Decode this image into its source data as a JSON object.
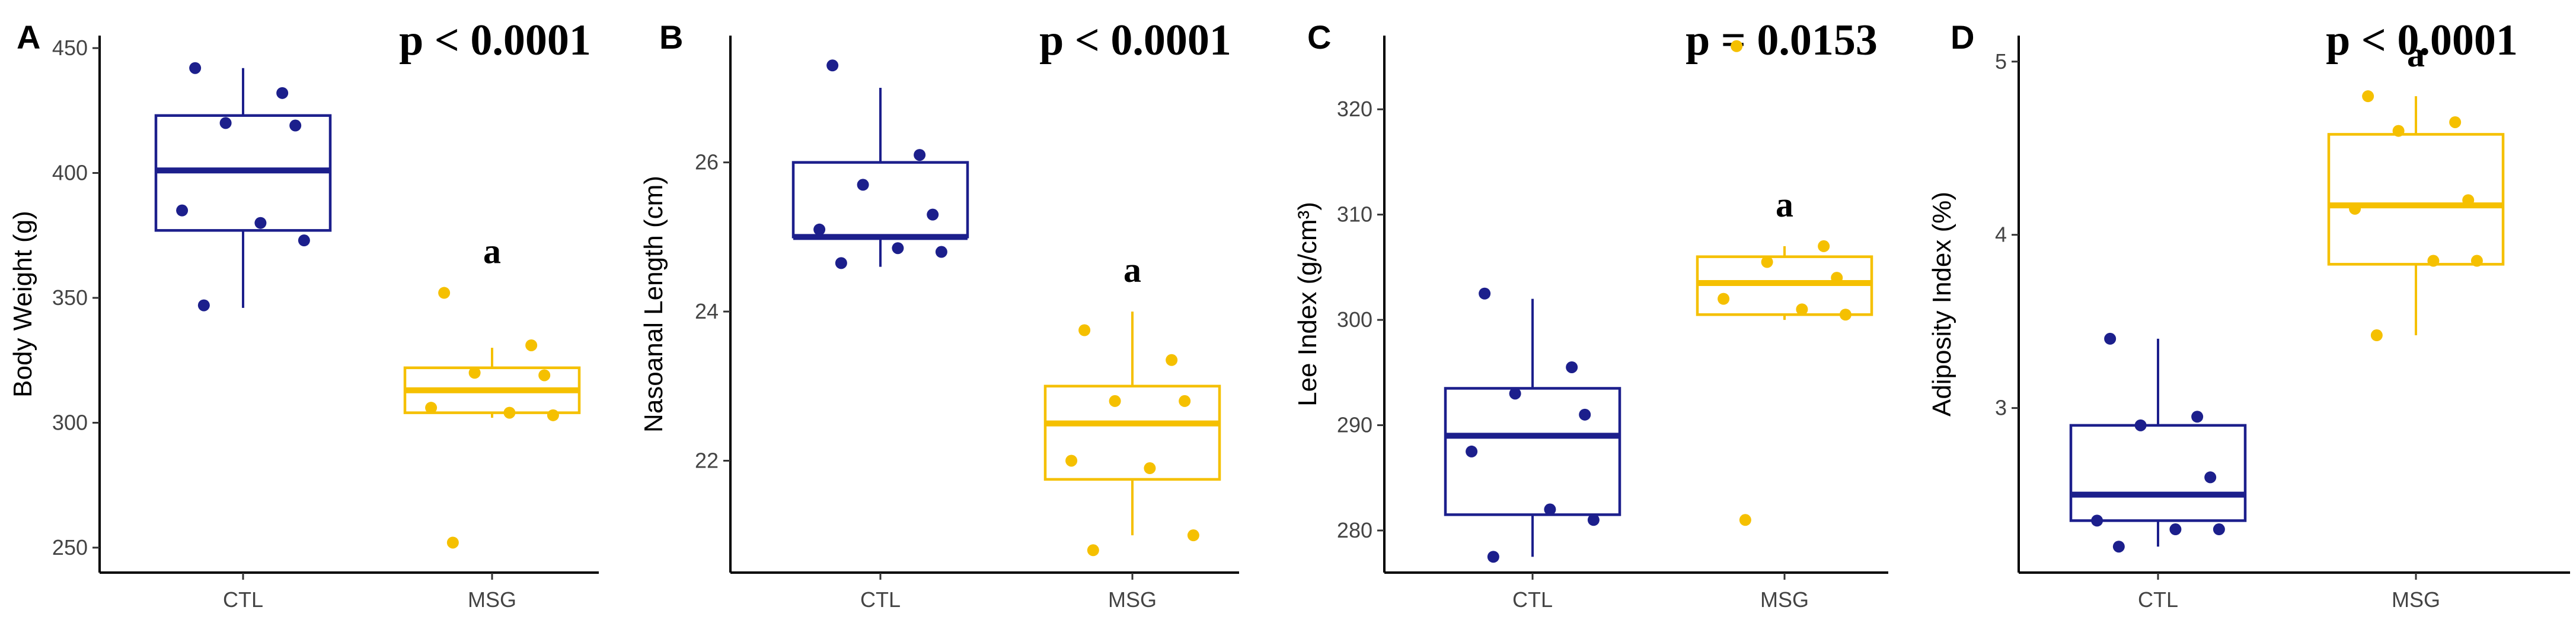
{
  "chart_data": [
    {
      "panel": "A",
      "type": "box",
      "ylabel": "Body Weight (g)",
      "ylim": [
        240,
        455
      ],
      "yticks": [
        250,
        300,
        350,
        400,
        450
      ],
      "pvalue": "p < 0.0001",
      "categories": [
        "CTL",
        "MSG"
      ],
      "colors": [
        "#1c1f8c",
        "#f5c000"
      ],
      "groups": [
        {
          "name": "CTL",
          "q1": 377,
          "median": 401,
          "q3": 423,
          "whisker_low": 346,
          "whisker_high": 442,
          "points": [
            442,
            432,
            420,
            419,
            385,
            380,
            373,
            347
          ],
          "annotation": ""
        },
        {
          "name": "MSG",
          "q1": 304,
          "median": 313,
          "q3": 322,
          "whisker_low": 302,
          "whisker_high": 330,
          "points": [
            352,
            331,
            320,
            319,
            306,
            304,
            303,
            252
          ],
          "annotation": "a"
        }
      ]
    },
    {
      "panel": "B",
      "type": "box",
      "ylabel": "Nasoanal Length (cm)",
      "ylim": [
        20.5,
        27.7
      ],
      "yticks": [
        22,
        24,
        26
      ],
      "pvalue": "p < 0.0001",
      "categories": [
        "CTL",
        "MSG"
      ],
      "colors": [
        "#1c1f8c",
        "#f5c000"
      ],
      "groups": [
        {
          "name": "CTL",
          "q1": 25.0,
          "median": 25.0,
          "q3": 26.0,
          "whisker_low": 24.6,
          "whisker_high": 27.0,
          "points": [
            27.3,
            26.1,
            25.7,
            25.3,
            25.1,
            24.85,
            24.8,
            24.65
          ],
          "annotation": ""
        },
        {
          "name": "MSG",
          "q1": 21.75,
          "median": 22.5,
          "q3": 23.0,
          "whisker_low": 21.0,
          "whisker_high": 24.0,
          "points": [
            23.75,
            23.35,
            22.8,
            22.8,
            22.0,
            21.9,
            21.0,
            20.8
          ],
          "annotation": "a"
        }
      ]
    },
    {
      "panel": "C",
      "type": "box",
      "ylabel": "Lee Index (g/cm³)",
      "ylim": [
        276,
        327
      ],
      "yticks": [
        280,
        290,
        300,
        310,
        320
      ],
      "pvalue": "p = 0.0153",
      "categories": [
        "CTL",
        "MSG"
      ],
      "colors": [
        "#1c1f8c",
        "#f5c000"
      ],
      "groups": [
        {
          "name": "CTL",
          "q1": 281.5,
          "median": 289.0,
          "q3": 293.5,
          "whisker_low": 277.5,
          "whisker_high": 302.0,
          "points": [
            302.5,
            295.5,
            293.0,
            291.0,
            287.5,
            282.0,
            281.0,
            277.5
          ],
          "annotation": ""
        },
        {
          "name": "MSG",
          "q1": 300.5,
          "median": 303.5,
          "q3": 306.0,
          "whisker_low": 300.0,
          "whisker_high": 307.0,
          "points": [
            326.0,
            307.0,
            305.5,
            304.0,
            302.0,
            301.0,
            300.5,
            281.0
          ],
          "annotation": "a"
        }
      ]
    },
    {
      "panel": "D",
      "type": "box",
      "ylabel": "Adiposity Index (%)",
      "ylim": [
        2.05,
        5.15
      ],
      "yticks": [
        3,
        4,
        5
      ],
      "pvalue": "p < 0.0001",
      "categories": [
        "CTL",
        "MSG"
      ],
      "colors": [
        "#1c1f8c",
        "#f5c000"
      ],
      "groups": [
        {
          "name": "CTL",
          "q1": 2.35,
          "median": 2.5,
          "q3": 2.9,
          "whisker_low": 2.2,
          "whisker_high": 3.4,
          "points": [
            3.4,
            2.95,
            2.9,
            2.6,
            2.35,
            2.3,
            2.3,
            2.2
          ],
          "annotation": ""
        },
        {
          "name": "MSG",
          "q1": 3.83,
          "median": 4.17,
          "q3": 4.58,
          "whisker_low": 3.42,
          "whisker_high": 4.8,
          "points": [
            4.8,
            4.65,
            4.6,
            4.2,
            4.15,
            3.85,
            3.85,
            3.42
          ],
          "annotation": "a"
        }
      ]
    }
  ]
}
